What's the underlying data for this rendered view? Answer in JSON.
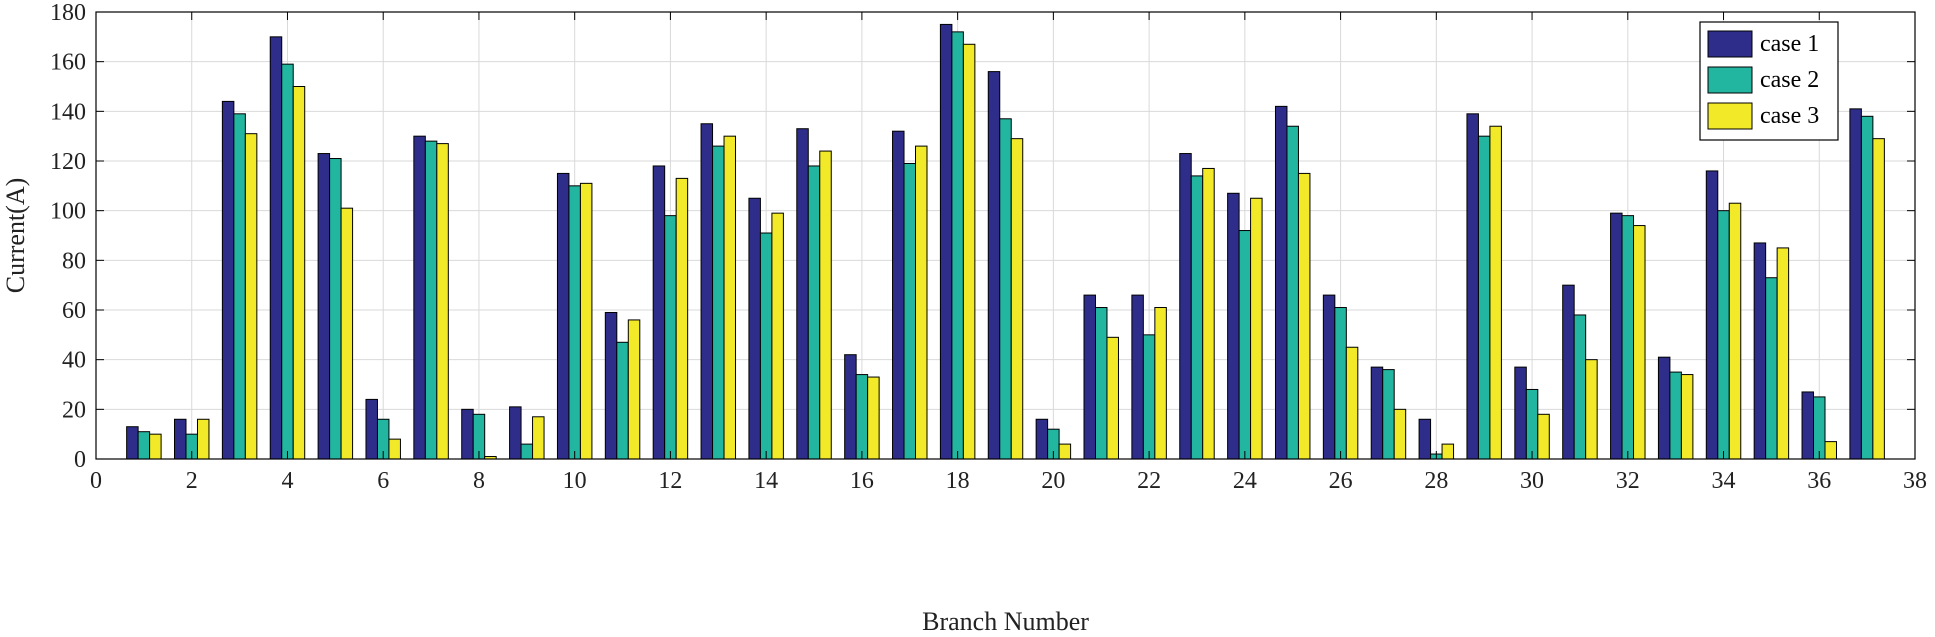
{
  "chart_data": {
    "type": "bar",
    "xlabel": "Branch Number",
    "ylabel": "Current(A)",
    "xlim": [
      0,
      38
    ],
    "ylim": [
      0,
      180
    ],
    "xticks": [
      0,
      2,
      4,
      6,
      8,
      10,
      12,
      14,
      16,
      18,
      20,
      22,
      24,
      26,
      28,
      30,
      32,
      34,
      36,
      38
    ],
    "yticks": [
      0,
      20,
      40,
      60,
      80,
      100,
      120,
      140,
      160,
      180
    ],
    "grid": true,
    "legend_position": "top-right",
    "categories": [
      1,
      2,
      3,
      4,
      5,
      6,
      7,
      8,
      9,
      10,
      11,
      12,
      13,
      14,
      15,
      16,
      17,
      18,
      19,
      20,
      21,
      22,
      23,
      24,
      25,
      26,
      27,
      28,
      29,
      30,
      31,
      32,
      33,
      34,
      35,
      36,
      37
    ],
    "series": [
      {
        "name": "case 1",
        "color": "#2e2e8a",
        "values": [
          13,
          16,
          144,
          170,
          123,
          24,
          130,
          20,
          21,
          115,
          59,
          118,
          135,
          105,
          133,
          42,
          132,
          175,
          156,
          16,
          66,
          66,
          123,
          107,
          142,
          66,
          37,
          16,
          139,
          37,
          70,
          99,
          41,
          116,
          87,
          27,
          141
        ]
      },
      {
        "name": "case 2",
        "color": "#22b5a0",
        "values": [
          11,
          10,
          139,
          159,
          121,
          16,
          128,
          18,
          6,
          110,
          47,
          98,
          126,
          91,
          118,
          34,
          119,
          172,
          137,
          12,
          61,
          50,
          114,
          92,
          134,
          61,
          36,
          2,
          130,
          28,
          58,
          98,
          35,
          100,
          73,
          25,
          138
        ]
      },
      {
        "name": "case 3",
        "color": "#f2ea28",
        "values": [
          10,
          16,
          131,
          150,
          101,
          8,
          127,
          1,
          17,
          111,
          56,
          113,
          130,
          99,
          124,
          33,
          126,
          167,
          129,
          6,
          49,
          61,
          117,
          105,
          115,
          45,
          20,
          6,
          134,
          18,
          40,
          94,
          34,
          103,
          85,
          7,
          129
        ]
      }
    ]
  }
}
